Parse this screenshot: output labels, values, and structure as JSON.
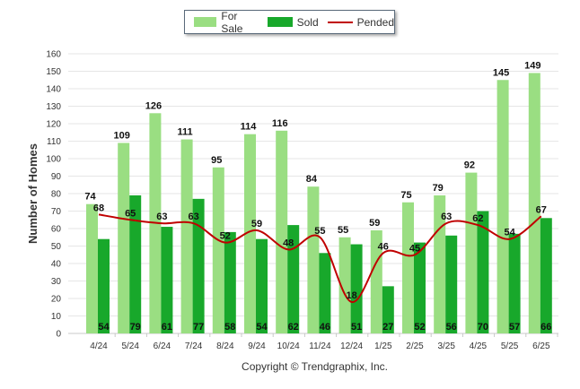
{
  "legend": {
    "for_sale": "For Sale",
    "sold": "Sold",
    "pended": "Pended"
  },
  "copyright": "Copyright © Trendgraphix, Inc.",
  "colors": {
    "for_sale": "#9ade82",
    "sold": "#18a82b",
    "pended": "#c00000",
    "grid": "#e6e6e6"
  },
  "chart_data": {
    "type": "bar",
    "title": "",
    "xlabel": "",
    "ylabel": "Number of Homes",
    "ylim": [
      0,
      160
    ],
    "yticks": [
      0,
      10,
      20,
      30,
      40,
      50,
      60,
      70,
      80,
      90,
      100,
      110,
      120,
      130,
      140,
      150,
      160
    ],
    "grid": true,
    "legend_position": "top-center",
    "categories": [
      "4/24",
      "5/24",
      "6/24",
      "7/24",
      "8/24",
      "9/24",
      "10/24",
      "11/24",
      "12/24",
      "1/25",
      "2/25",
      "3/25",
      "4/25",
      "5/25",
      "6/25"
    ],
    "series": [
      {
        "name": "For Sale",
        "kind": "bar",
        "values": [
          74,
          109,
          126,
          111,
          95,
          114,
          116,
          84,
          55,
          59,
          75,
          79,
          92,
          145,
          149
        ]
      },
      {
        "name": "Sold",
        "kind": "bar",
        "values": [
          54,
          79,
          61,
          77,
          58,
          54,
          62,
          46,
          51,
          27,
          52,
          56,
          70,
          57,
          66
        ]
      },
      {
        "name": "Pended",
        "kind": "line",
        "values": [
          68,
          65,
          63,
          63,
          52,
          59,
          48,
          55,
          18,
          46,
          45,
          63,
          62,
          54,
          67
        ]
      }
    ]
  }
}
